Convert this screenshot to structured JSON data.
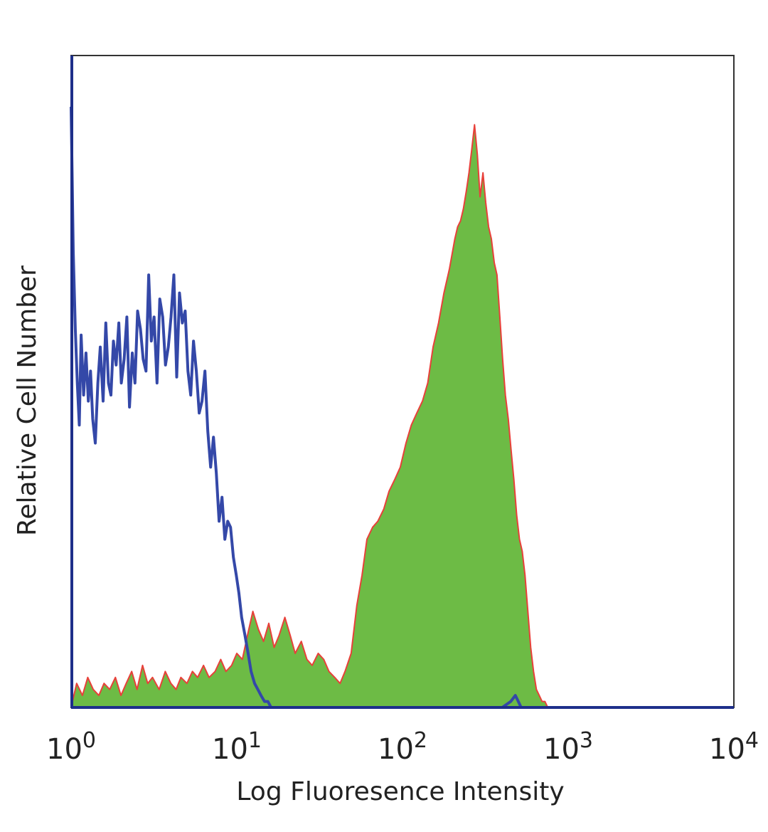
{
  "chart_data": {
    "type": "area",
    "title": "",
    "xlabel": "Log Fluoresence Intensity",
    "ylabel": "Relative Cell Number",
    "x_scale": "log",
    "xlim": [
      1,
      10000
    ],
    "ylim": [
      0,
      100
    ],
    "grid": false,
    "legend": "none",
    "x_ticks": [
      {
        "value": 1,
        "base": "10",
        "exp": "0"
      },
      {
        "value": 10,
        "base": "10",
        "exp": "1"
      },
      {
        "value": 100,
        "base": "10",
        "exp": "2"
      },
      {
        "value": 1000,
        "base": "10",
        "exp": "3"
      },
      {
        "value": 10000,
        "base": "10",
        "exp": "4"
      }
    ],
    "colors": {
      "filled_fill": "#6dbb45",
      "filled_edge": "#e8403a",
      "control_line": "#3448a8",
      "frame": "#333333",
      "baseline": "#1e2f8a"
    },
    "series": [
      {
        "style": "filled",
        "x": [
          1.0,
          1.08,
          1.17,
          1.26,
          1.36,
          1.47,
          1.58,
          1.71,
          1.85,
          2.0,
          2.15,
          2.32,
          2.5,
          2.7,
          2.9,
          3.1,
          3.4,
          3.7,
          4.0,
          4.3,
          4.6,
          5.0,
          5.4,
          5.8,
          6.3,
          6.8,
          7.4,
          8.0,
          8.6,
          9.3,
          10.0,
          10.8,
          11.6,
          12.5,
          13.5,
          14.5,
          15.6,
          16.8,
          18.0,
          19.5,
          21.0,
          22.5,
          24.5,
          26.5,
          28.5,
          31.0,
          33.5,
          36.0,
          39.0,
          42.0,
          45.0,
          49.0,
          53.0,
          57.0,
          61.0,
          66.0,
          71.0,
          77.0,
          83.0,
          90.0,
          97.0,
          105.0,
          113.0,
          122.0,
          132.0,
          142.0,
          153.0,
          165.0,
          178.0,
          192.0,
          207.0,
          215.0,
          224.0,
          233.0,
          243.0,
          252.0,
          262.0,
          272.0,
          283.0,
          294.0,
          306.0,
          318.0,
          331.0,
          344.0,
          358.0,
          372.0,
          387.0,
          402.0,
          418.0,
          435.0,
          452.0,
          470.0,
          489.0,
          508.0,
          528.0,
          549.0,
          571.0,
          594.0,
          618.0,
          643.0,
          669.0,
          696.0,
          724.0,
          753.0,
          783.0,
          815.0,
          848.0,
          882.0,
          900.0
        ],
        "y": [
          0,
          4,
          2,
          5,
          3,
          2,
          4,
          3,
          5,
          2,
          4,
          6,
          3,
          7,
          4,
          5,
          3,
          6,
          4,
          3,
          5,
          4,
          6,
          5,
          7,
          5,
          6,
          8,
          6,
          7,
          9,
          8,
          12,
          16,
          13,
          11,
          14,
          10,
          12,
          15,
          12,
          9,
          11,
          8,
          7,
          9,
          8,
          6,
          5,
          4,
          6,
          9,
          17,
          22,
          28,
          30,
          31,
          33,
          36,
          38,
          40,
          44,
          47,
          49,
          51,
          54,
          60,
          64,
          69,
          73,
          78,
          80,
          81,
          83,
          86,
          89,
          93,
          97,
          92,
          85,
          89,
          84,
          80,
          78,
          74,
          72,
          65,
          58,
          52,
          48,
          43,
          38,
          32,
          28,
          26,
          22,
          16,
          10,
          6,
          3,
          2,
          1,
          1,
          0,
          0,
          0,
          0,
          0,
          0
        ]
      },
      {
        "style": "line",
        "x": [
          1.0,
          1.03,
          1.06,
          1.09,
          1.12,
          1.15,
          1.19,
          1.23,
          1.27,
          1.31,
          1.35,
          1.4,
          1.45,
          1.5,
          1.56,
          1.62,
          1.68,
          1.74,
          1.8,
          1.87,
          1.94,
          2.01,
          2.09,
          2.17,
          2.25,
          2.34,
          2.43,
          2.52,
          2.62,
          2.72,
          2.83,
          2.94,
          3.05,
          3.17,
          3.3,
          3.43,
          3.57,
          3.71,
          3.86,
          4.01,
          4.17,
          4.34,
          4.51,
          4.69,
          4.88,
          5.07,
          5.27,
          5.48,
          5.7,
          5.93,
          6.17,
          6.42,
          6.68,
          6.95,
          7.23,
          7.52,
          7.82,
          8.14,
          8.47,
          8.81,
          9.17,
          9.54,
          9.93,
          10.3,
          10.7,
          11.2,
          11.7,
          12.2,
          12.8,
          13.4,
          14.0,
          14.7,
          15.4,
          16.1,
          16.8,
          17.5,
          18.3,
          19.0,
          100.0,
          200.0,
          300.0,
          400.0,
          450.0,
          480.0,
          500.0,
          520.0,
          560.0
        ],
        "y": [
          100,
          76,
          63,
          54,
          47,
          62,
          52,
          59,
          51,
          56,
          48,
          44,
          54,
          60,
          51,
          64,
          54,
          52,
          61,
          57,
          64,
          54,
          58,
          65,
          50,
          59,
          54,
          66,
          63,
          58,
          56,
          72,
          61,
          65,
          54,
          68,
          65,
          57,
          60,
          65,
          72,
          55,
          69,
          64,
          66,
          56,
          52,
          61,
          56,
          49,
          51,
          56,
          46,
          40,
          45,
          39,
          31,
          35,
          28,
          31,
          30,
          25,
          22,
          19,
          15,
          12,
          9,
          6,
          4,
          3,
          2,
          1,
          1,
          0,
          0,
          0,
          0,
          0,
          0,
          0,
          0,
          0,
          1,
          2,
          1,
          0,
          0
        ]
      }
    ]
  }
}
